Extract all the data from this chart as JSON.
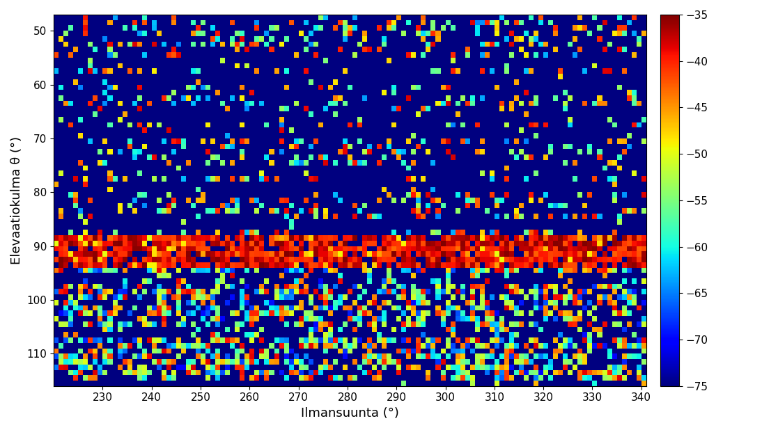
{
  "x_min": 220,
  "x_max": 341,
  "y_min": 47,
  "y_max": 116,
  "x_ticks": [
    230,
    240,
    250,
    260,
    270,
    280,
    290,
    300,
    310,
    320,
    330,
    340
  ],
  "y_ticks": [
    50,
    60,
    70,
    80,
    90,
    100,
    110
  ],
  "cbar_min": -75,
  "cbar_max": -35,
  "cbar_ticks": [
    -75,
    -70,
    -65,
    -60,
    -55,
    -50,
    -45,
    -40,
    -35
  ],
  "xlabel": "Ilmansuunta (°)",
  "ylabel": "Elevaatiokulma θ (°)",
  "colormap": "jet",
  "seed": 7,
  "n_cols": 121,
  "n_rows": 69
}
